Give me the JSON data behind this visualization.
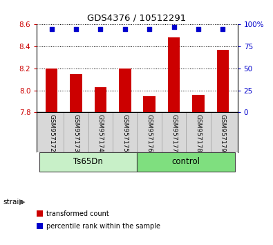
{
  "title": "GDS4376 / 10512291",
  "samples": [
    "GSM957172",
    "GSM957173",
    "GSM957174",
    "GSM957175",
    "GSM957176",
    "GSM957177",
    "GSM957178",
    "GSM957179"
  ],
  "bar_values": [
    8.2,
    8.15,
    8.03,
    8.2,
    7.95,
    8.48,
    7.96,
    8.37
  ],
  "percentile_values": [
    95,
    95,
    95,
    95,
    95,
    97,
    95,
    95
  ],
  "bar_color": "#cc0000",
  "dot_color": "#0000cc",
  "ylim_left": [
    7.8,
    8.6
  ],
  "ylim_right": [
    0,
    100
  ],
  "yticks_left": [
    7.8,
    8.0,
    8.2,
    8.4,
    8.6
  ],
  "yticks_right": [
    0,
    25,
    50,
    75,
    100
  ],
  "ytick_labels_right": [
    "0",
    "25",
    "50",
    "75",
    "100%"
  ],
  "groups": [
    {
      "label": "Ts65Dn",
      "indices": [
        0,
        1,
        2,
        3
      ],
      "color": "#c8f0c8"
    },
    {
      "label": "control",
      "indices": [
        4,
        5,
        6,
        7
      ],
      "color": "#7fdf7f"
    }
  ],
  "legend_bar_label": "transformed count",
  "legend_dot_label": "percentile rank within the sample",
  "sample_bg_color": "#d8d8d8",
  "plot_bg_color": "#ffffff",
  "title_color": "#000000",
  "left_tick_color": "#cc0000",
  "right_tick_color": "#0000cc",
  "bar_width": 0.5,
  "grid_color": "#000000"
}
